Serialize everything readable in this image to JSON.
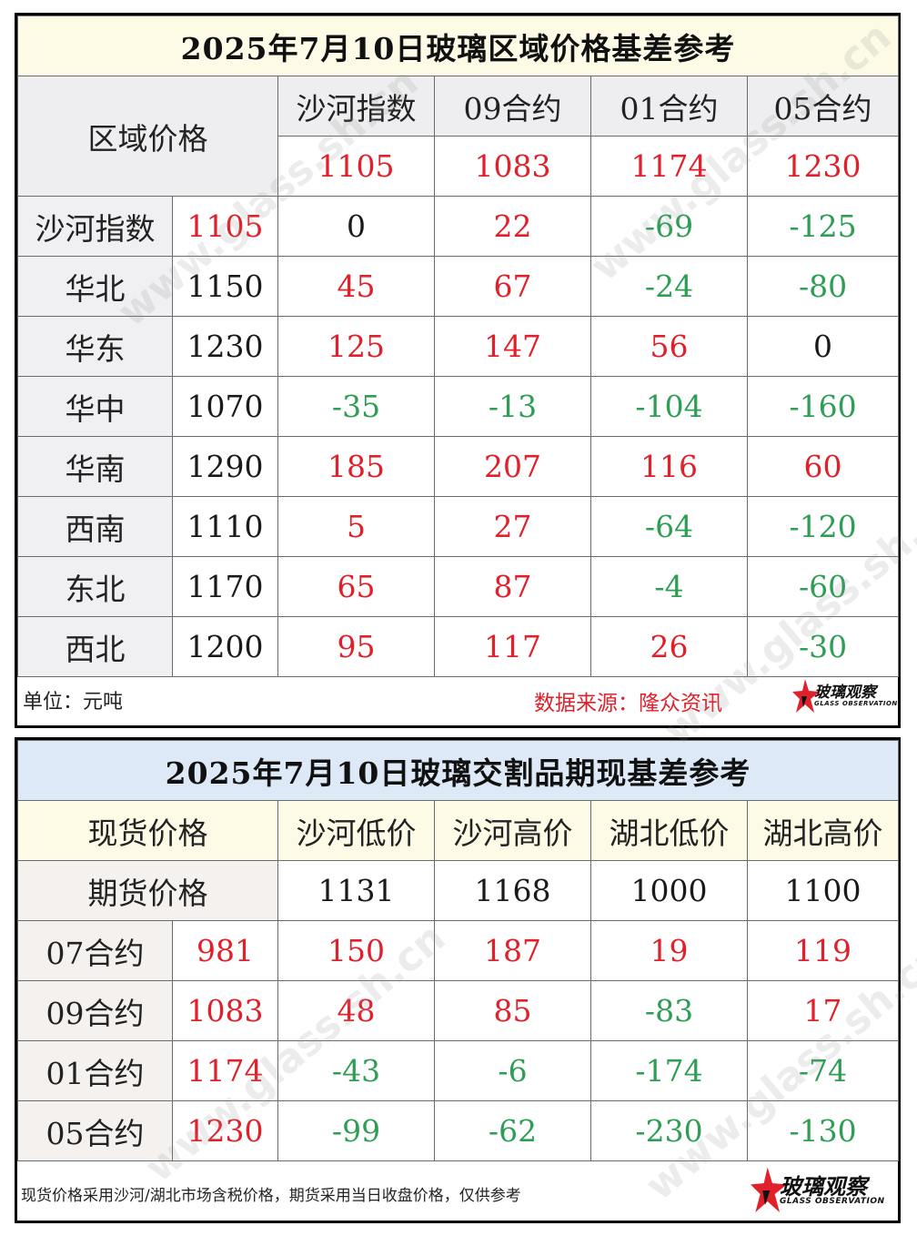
{
  "watermark": "www.glass.sh.cn",
  "colors": {
    "positive": "#e0202a",
    "negative": "#2e9e55",
    "neutral": "#1a1a1a"
  },
  "table1": {
    "title": "2025年7月10日玻璃区域价格基差参考",
    "corner_label": "区域价格",
    "columns": [
      {
        "label": "沙河指数",
        "price": "1105"
      },
      {
        "label": "09合约",
        "price": "1083"
      },
      {
        "label": "01合约",
        "price": "1174"
      },
      {
        "label": "05合约",
        "price": "1230"
      }
    ],
    "rows": [
      {
        "region": "沙河指数",
        "price": "1105",
        "price_color": "red",
        "values": [
          {
            "v": "0",
            "c": "black"
          },
          {
            "v": "22",
            "c": "red"
          },
          {
            "v": "-69",
            "c": "green"
          },
          {
            "v": "-125",
            "c": "green"
          }
        ]
      },
      {
        "region": "华北",
        "price": "1150",
        "price_color": "black",
        "values": [
          {
            "v": "45",
            "c": "red"
          },
          {
            "v": "67",
            "c": "red"
          },
          {
            "v": "-24",
            "c": "green"
          },
          {
            "v": "-80",
            "c": "green"
          }
        ]
      },
      {
        "region": "华东",
        "price": "1230",
        "price_color": "black",
        "values": [
          {
            "v": "125",
            "c": "red"
          },
          {
            "v": "147",
            "c": "red"
          },
          {
            "v": "56",
            "c": "red"
          },
          {
            "v": "0",
            "c": "black"
          }
        ]
      },
      {
        "region": "华中",
        "price": "1070",
        "price_color": "black",
        "values": [
          {
            "v": "-35",
            "c": "green"
          },
          {
            "v": "-13",
            "c": "green"
          },
          {
            "v": "-104",
            "c": "green"
          },
          {
            "v": "-160",
            "c": "green"
          }
        ]
      },
      {
        "region": "华南",
        "price": "1290",
        "price_color": "black",
        "values": [
          {
            "v": "185",
            "c": "red"
          },
          {
            "v": "207",
            "c": "red"
          },
          {
            "v": "116",
            "c": "red"
          },
          {
            "v": "60",
            "c": "red"
          }
        ]
      },
      {
        "region": "西南",
        "price": "1110",
        "price_color": "black",
        "values": [
          {
            "v": "5",
            "c": "red"
          },
          {
            "v": "27",
            "c": "red"
          },
          {
            "v": "-64",
            "c": "green"
          },
          {
            "v": "-120",
            "c": "green"
          }
        ]
      },
      {
        "region": "东北",
        "price": "1170",
        "price_color": "black",
        "values": [
          {
            "v": "65",
            "c": "red"
          },
          {
            "v": "87",
            "c": "red"
          },
          {
            "v": "-4",
            "c": "green"
          },
          {
            "v": "-60",
            "c": "green"
          }
        ]
      },
      {
        "region": "西北",
        "price": "1200",
        "price_color": "black",
        "values": [
          {
            "v": "95",
            "c": "red"
          },
          {
            "v": "117",
            "c": "red"
          },
          {
            "v": "26",
            "c": "red"
          },
          {
            "v": "-30",
            "c": "green"
          }
        ]
      }
    ],
    "unit": "单位：元吨",
    "source": "数据来源：隆众资讯"
  },
  "table2": {
    "title": "2025年7月10日玻璃交割品期现基差参考",
    "spot_label": "现货价格",
    "futures_label": "期货价格",
    "columns": [
      {
        "label": "沙河低价",
        "price": "1131"
      },
      {
        "label": "沙河高价",
        "price": "1168"
      },
      {
        "label": "湖北低价",
        "price": "1000"
      },
      {
        "label": "湖北高价",
        "price": "1100"
      }
    ],
    "rows": [
      {
        "contract": "07合约",
        "price": "981",
        "values": [
          {
            "v": "150",
            "c": "red"
          },
          {
            "v": "187",
            "c": "red"
          },
          {
            "v": "19",
            "c": "red"
          },
          {
            "v": "119",
            "c": "red"
          }
        ]
      },
      {
        "contract": "09合约",
        "price": "1083",
        "values": [
          {
            "v": "48",
            "c": "red"
          },
          {
            "v": "85",
            "c": "red"
          },
          {
            "v": "-83",
            "c": "green"
          },
          {
            "v": "17",
            "c": "red"
          }
        ]
      },
      {
        "contract": "01合约",
        "price": "1174",
        "values": [
          {
            "v": "-43",
            "c": "green"
          },
          {
            "v": "-6",
            "c": "green"
          },
          {
            "v": "-174",
            "c": "green"
          },
          {
            "v": "-74",
            "c": "green"
          }
        ]
      },
      {
        "contract": "05合约",
        "price": "1230",
        "values": [
          {
            "v": "-99",
            "c": "green"
          },
          {
            "v": "-62",
            "c": "green"
          },
          {
            "v": "-230",
            "c": "green"
          },
          {
            "v": "-130",
            "c": "green"
          }
        ]
      }
    ],
    "note": "现货价格采用沙河/湖北市场含税价格，期货采用当日收盘价格，仅供参考"
  },
  "logo": {
    "cn": "玻璃观察",
    "en": "GLASS OBSERVATION",
    "icon": "red-star-icon"
  }
}
